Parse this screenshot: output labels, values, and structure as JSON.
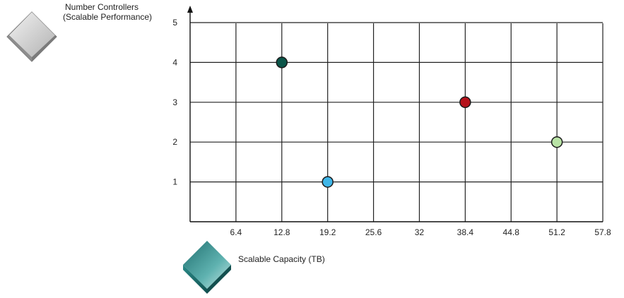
{
  "chart_data": {
    "type": "scatter",
    "title": "",
    "xlabel": "Scalable Capacity (TB)",
    "ylabel_lines": [
      "Number Controllers",
      "(Scalable Performance)"
    ],
    "x_ticks": [
      "6.4",
      "12.8",
      "19.2",
      "25.6",
      "32",
      "38.4",
      "44.8",
      "51.2",
      "57.8"
    ],
    "y_ticks": [
      "1",
      "2",
      "3",
      "4",
      "5"
    ],
    "xlim": [
      0,
      57.8
    ],
    "ylim": [
      0,
      5
    ],
    "grid": true,
    "points": [
      {
        "x": 12.8,
        "y": 4,
        "color": "#0b5549"
      },
      {
        "x": 19.2,
        "y": 1,
        "color": "#3fb6e8"
      },
      {
        "x": 38.4,
        "y": 3,
        "color": "#b5121b"
      },
      {
        "x": 51.2,
        "y": 2,
        "color": "#b9e3a6"
      }
    ],
    "colors": {
      "grid": "#222222",
      "axis": "#111111",
      "ylabel_badge": "#9a9a9a",
      "xlabel_badge": "#2f8f8f"
    },
    "icons": {
      "ylabel_badge": "gray-diamond-icon",
      "xlabel_badge": "teal-cube-icon"
    }
  }
}
